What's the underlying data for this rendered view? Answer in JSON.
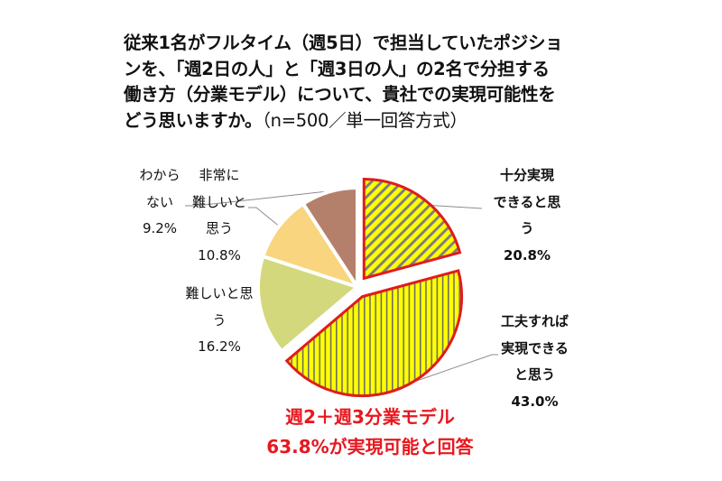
{
  "title": {
    "lines": [
      "従来1名がフルタイム（週5日）で担当していたポジショ",
      "ンを、「週2日の人」と「週3日の人」の2名で分担する",
      "働き方（分業モデル）について、貴社での実現可能性を",
      "どう思いますか。"
    ],
    "note": "（n=500／単一回答方式）"
  },
  "labels": {
    "very_feasible": {
      "lines": [
        "十分実現",
        "できると思",
        "う",
        "20.8%"
      ]
    },
    "feasible_with_effort": {
      "lines": [
        "工夫すれば",
        "実現できる",
        "と思う",
        "43.0%"
      ]
    },
    "difficult": {
      "lines": [
        "難しいと思",
        "う",
        "16.2%"
      ]
    },
    "very_difficult": {
      "lines": [
        "非常に",
        "難しいと",
        "思う",
        "10.8%"
      ]
    },
    "dont_know": {
      "lines": [
        "わから",
        "ない",
        "9.2%"
      ]
    }
  },
  "callout": {
    "line1": "週2＋週3分業モデル",
    "line2": "63.8%が実現可能と回答",
    "color": "#e8171f"
  },
  "chart_data": {
    "type": "pie",
    "title": "従来1名がフルタイム（週5日）で担当していたポジションを、「週2日の人」と「週3日の人」の2名で分担する働き方（分業モデル）について、貴社での実現可能性をどう思いますか。（n=500／単一回答方式）",
    "start_angle_deg": 0,
    "direction": "clockwise",
    "categories": [
      "十分実現できると思う",
      "工夫すれば実現できると思う",
      "難しいと思う",
      "非常に難しいと思う",
      "わからない"
    ],
    "values": [
      20.8,
      43.0,
      16.2,
      10.8,
      9.2
    ],
    "unit": "%",
    "colors": [
      "#ffff00",
      "#ffff00",
      "#d3d87c",
      "#f8d57e",
      "#b5806b"
    ],
    "patterns": [
      "diagonal-stripes-gray",
      "vertical-stripes-gray",
      "none",
      "none",
      "none"
    ],
    "outline": [
      "#e01c1c",
      "#e01c1c",
      "#ffffff",
      "#ffffff",
      "#ffffff"
    ],
    "exploded": [
      true,
      true,
      false,
      false,
      false
    ],
    "annotations": [
      "週2＋週3分業モデル 63.8%が実現可能と回答"
    ],
    "legend": "none (data labels)"
  }
}
